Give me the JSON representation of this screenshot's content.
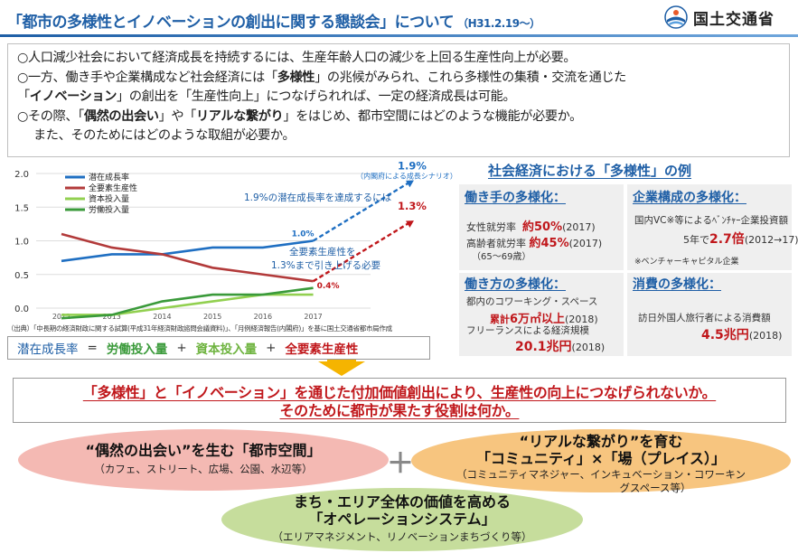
{
  "header": {
    "title": "「都市の多様性とイノベーションの創出に関する懇談会」について",
    "date": "（H31.2.19～）",
    "ministry": "国土交通省"
  },
  "intro": {
    "l1": "○人口減少社会において経済成長を持続するには、生産年齢人口の減少を上回る生産性向上が必要。",
    "l2a": "○一方、働き手や企業構成など社会経済には「",
    "l2b": "多様性",
    "l2c": "」の兆候がみられ、これら多様性の集積・交流を通じた",
    "l3a": "「",
    "l3b": "イノベーション",
    "l3c": "」の創出を「生産性向上」につなげられれば、一定の経済成長は可能。",
    "l4a": "○その際、「",
    "l4b": "偶然の出会い",
    "l4c": "」や「",
    "l4d": "リアルな繋がり",
    "l4e": "」をはじめ、都市空間にはどのような機能が必要か。",
    "l5": "また、そのためにはどのような取組が必要か。"
  },
  "chart_data": {
    "type": "line",
    "x": [
      2012,
      2013,
      2014,
      2015,
      2016,
      2017
    ],
    "ylim": [
      0.0,
      2.0
    ],
    "yticks": [
      "0.0",
      "0.5",
      "1.0",
      "1.5",
      "2.0"
    ],
    "xticks": [
      "2012",
      "2013",
      "2014",
      "2015",
      "2016",
      "2017"
    ],
    "series": [
      {
        "name": "潜在成長率",
        "color": "#1f6fc2",
        "values": [
          0.7,
          0.8,
          0.8,
          0.9,
          0.9,
          1.0
        ]
      },
      {
        "name": "全要素生産性",
        "color": "#b23a3a",
        "values": [
          1.1,
          0.9,
          0.8,
          0.6,
          0.5,
          0.4
        ]
      },
      {
        "name": "資本投入量",
        "color": "#92d050",
        "values": [
          -0.1,
          -0.1,
          0.0,
          0.1,
          0.2,
          0.2
        ]
      },
      {
        "name": "労働投入量",
        "color": "#3a9a3a",
        "values": [
          -0.2,
          -0.1,
          0.1,
          0.2,
          0.2,
          0.3
        ]
      }
    ],
    "projections": [
      {
        "from": 1.0,
        "to": 1.9,
        "color": "#1f6fc2",
        "value_label": "1.9%",
        "note": "（内閣府による成長シナリオ）"
      },
      {
        "from": 0.4,
        "to": 1.3,
        "color": "#c0171b",
        "value_label": "1.3%"
      }
    ],
    "point_labels": {
      "potential_2017": "1.0%",
      "tfp_2017": "0.4%"
    },
    "annotations": {
      "potential_target": "1.9%の潜在成長率を達成するには",
      "tfp_line1": "全要素生産性を",
      "tfp_line2": "1.3%まで引き上げる必要"
    },
    "source": "（出典）「中長期の経済財政に関する試算(平成31年経済財政諮問会議資料)」、「月例経済報告(内閣府)」を基に国土交通省都市局作成"
  },
  "formula": {
    "potential": "潜在成長率",
    "eq": "=",
    "labor": "労働投入量",
    "plus1": "+",
    "capital": "資本投入量",
    "plus2": "+",
    "tfp": "全要素生産性"
  },
  "diversity": {
    "title": "社会経済における「多様性」の例",
    "workers": {
      "title": "働き手の多様化：",
      "female_label": "女性就労率",
      "female_value": "約50%",
      "female_year": "(2017)",
      "elder_label": "高齢者就労率",
      "elder_value": "約45%",
      "elder_year": "(2017)",
      "elder_note": "（65～69歳）"
    },
    "companies": {
      "title": "企業構成の多様化：",
      "line1": "国内VC※等によるﾍﾞﾝﾁｬｰ企業投資額",
      "line2a": "5年で",
      "line2b": "2.7倍",
      "line2c": "(2012→17)",
      "note": "※ベンチャーキャピタル企業"
    },
    "work_style": {
      "title": "働き方の多様化：",
      "line1": "都内のコワーキング・スペース",
      "line2a": "累計",
      "line2b": "6万㎡以上",
      "line2c": "(2018)",
      "line3": "フリーランスによる経済規模",
      "line4a": "20.1兆円",
      "line4b": "(2018)"
    },
    "consumption": {
      "title": "消費の多様化：",
      "line1": "訪日外国人旅行者による消費額",
      "line2a": "4.5兆円",
      "line2b": "(2018)"
    }
  },
  "question": {
    "line1": "「多様性」と「イノベーション」を通じた付加価値創出により、生産性の向上につなげられないか。",
    "line2": "そのために都市が果たす役割は何か。"
  },
  "ellipses": {
    "pink_head": "“偶然の出会い”を生む「都市空間」",
    "pink_sub": "（カフェ、ストリート、広場、公園、水辺等）",
    "orange_head1": "“リアルな繋がり”を育む",
    "orange_head2": "「コミュニティ」×「場（プレイス）」",
    "orange_sub1": "（コミュニティマネジャー、インキュベーション・コワーキン",
    "orange_sub2": "グスペース等）",
    "plus": "＋",
    "green_head1": "まち・エリア全体の価値を高める",
    "green_head2": "「オペレーションシステム」",
    "green_sub": "（エリアマネジメント、リノベーションまちづくり等）"
  }
}
